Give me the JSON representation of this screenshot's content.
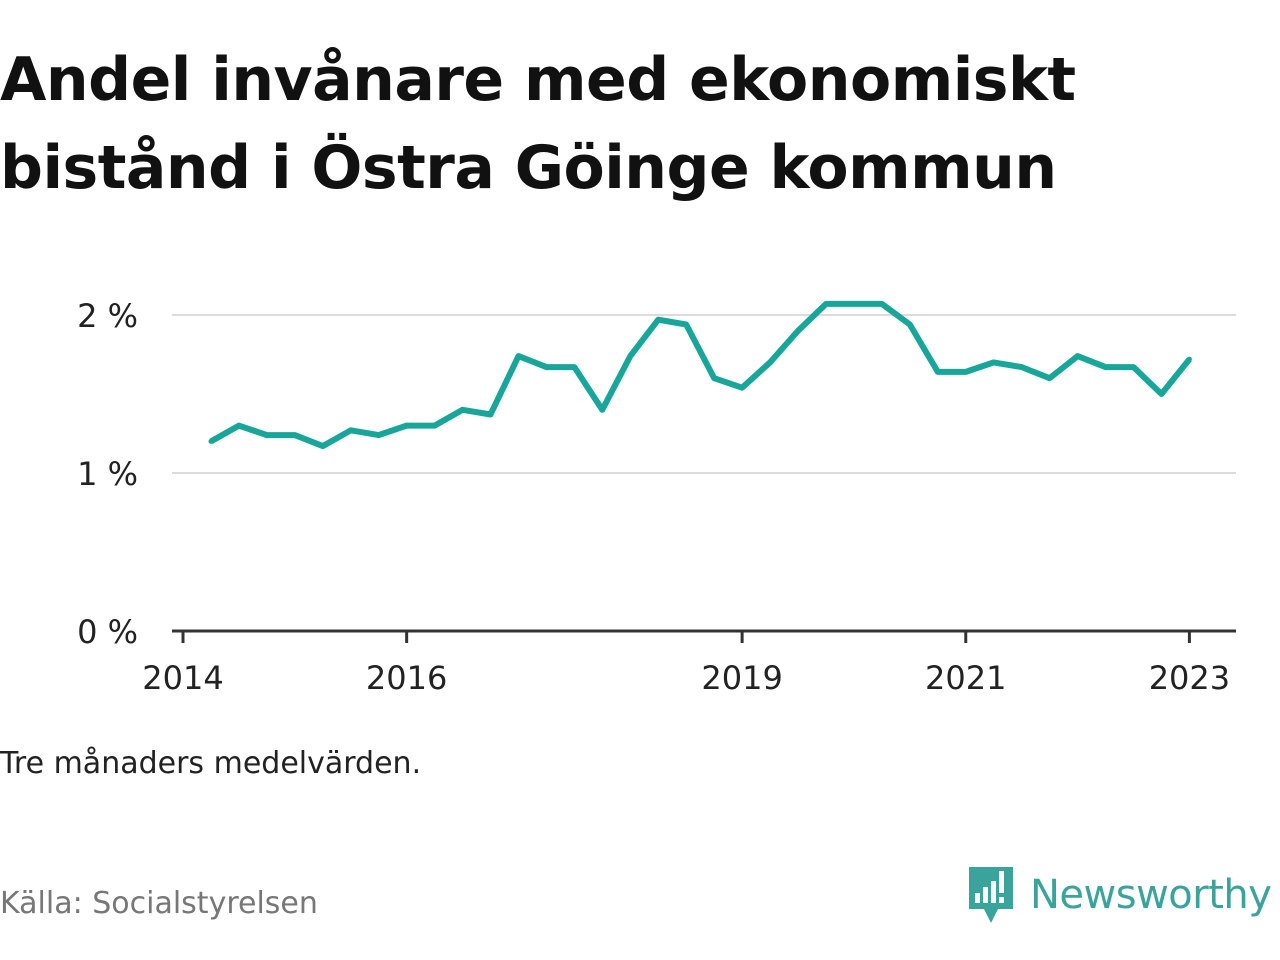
{
  "title": "Andel invånare med ekonomiskt bistånd i Östra Göinge kommun",
  "note": "Tre månaders medelvärden.",
  "source": "Källa: Socialstyrelsen",
  "brand": {
    "name": "Newsworthy",
    "icon": "newsworthy-logo-icon",
    "color": "#3aa39c"
  },
  "chart_data": {
    "type": "line",
    "title": "Andel invånare med ekonomiskt bistånd i Östra Göinge kommun",
    "xlabel": "",
    "ylabel": "",
    "grid": true,
    "legend": "none",
    "line_color": "#18a69b",
    "ylim": [
      0,
      2.1
    ],
    "y_ticks": [
      {
        "value": 0,
        "label": "0 %"
      },
      {
        "value": 1,
        "label": "1 %"
      },
      {
        "value": 2,
        "label": "2 %"
      }
    ],
    "x_ticks": [
      {
        "value": "2014-01",
        "label": "2014"
      },
      {
        "value": "2016-01",
        "label": "2016"
      },
      {
        "value": "2019-01",
        "label": "2019"
      },
      {
        "value": "2021-01",
        "label": "2021"
      },
      {
        "value": "2023-01",
        "label": "2023"
      }
    ],
    "series": [
      {
        "x": [
          "2014-04",
          "2014-07",
          "2014-10",
          "2015-01",
          "2015-04",
          "2015-07",
          "2015-10",
          "2016-01",
          "2016-04",
          "2016-07",
          "2016-10",
          "2017-01",
          "2017-04",
          "2017-07",
          "2017-10",
          "2018-01",
          "2018-04",
          "2018-07",
          "2018-10",
          "2019-01",
          "2019-04",
          "2019-07",
          "2019-10",
          "2020-01",
          "2020-04",
          "2020-07",
          "2020-10",
          "2021-01",
          "2021-04",
          "2021-07",
          "2021-10",
          "2022-01",
          "2022-04",
          "2022-07",
          "2022-10",
          "2023-01"
        ],
        "values": [
          1.2,
          1.3,
          1.24,
          1.24,
          1.17,
          1.27,
          1.24,
          1.3,
          1.3,
          1.4,
          1.37,
          1.74,
          1.67,
          1.67,
          1.4,
          1.74,
          1.97,
          1.94,
          1.6,
          1.54,
          1.7,
          1.9,
          2.07,
          2.07,
          2.07,
          1.94,
          1.64,
          1.64,
          1.7,
          1.67,
          1.6,
          1.74,
          1.67,
          1.67,
          1.5,
          1.72
        ]
      }
    ]
  }
}
